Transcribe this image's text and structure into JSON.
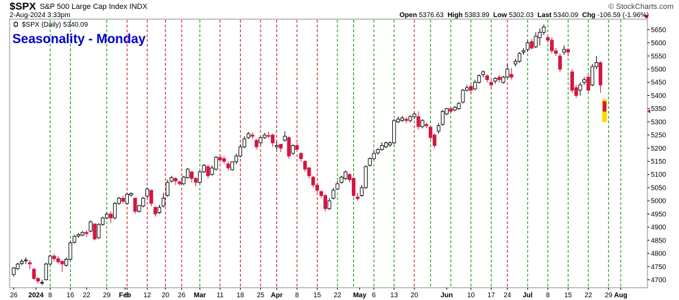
{
  "header": {
    "symbol": "$SPX",
    "description": "S&P 500 Large Cap Index INDX",
    "brand": "© StockCharts.com",
    "date": "2-Aug-2024 3:33pm",
    "open_label": "Open",
    "open": "5376.63",
    "high_label": "High",
    "high": "5383.89",
    "low_label": "Low",
    "low": "5302.03",
    "last_label": "Last",
    "last": "5340.09",
    "chg_label": "Chg",
    "chg": "-106.59 (-1.96%)"
  },
  "colors": {
    "up": "#ffffff",
    "down": "#d4163f",
    "outline": "#000000",
    "green_line": "#008800",
    "red_line": "#cc0000",
    "title": "#0000cc",
    "highlight": "#ffd700",
    "axis_accent": "#cc0000"
  },
  "chart_data": {
    "type": "candlestick",
    "title": "Seasonality - Monday",
    "legend": "$SPX (Daily) 5340.09",
    "ylim": [
      4670,
      5690
    ],
    "yticks": [
      4700,
      4750,
      4800,
      4850,
      4900,
      4950,
      5000,
      5050,
      5100,
      5150,
      5200,
      5250,
      5300,
      5350,
      5400,
      5450,
      5500,
      5550,
      5600,
      5650
    ],
    "x_ticks": [
      {
        "label": "26",
        "x": 0
      },
      {
        "label": "2024",
        "x": 5.5,
        "bold": true
      },
      {
        "label": "8",
        "x": 9
      },
      {
        "label": "16",
        "x": 14
      },
      {
        "label": "22",
        "x": 18
      },
      {
        "label": "29",
        "x": 23
      },
      {
        "label": "Feb",
        "x": 27.5,
        "bold": true
      },
      {
        "label": "5",
        "x": 28
      },
      {
        "label": "12",
        "x": 33
      },
      {
        "label": "20",
        "x": 37.5
      },
      {
        "label": "26",
        "x": 41.5
      },
      {
        "label": "Mar",
        "x": 46,
        "bold": true
      },
      {
        "label": "11",
        "x": 51
      },
      {
        "label": "18",
        "x": 56
      },
      {
        "label": "25",
        "x": 61
      },
      {
        "label": "Apr",
        "x": 65,
        "bold": true
      },
      {
        "label": "8",
        "x": 70
      },
      {
        "label": "15",
        "x": 75
      },
      {
        "label": "22",
        "x": 80
      },
      {
        "label": "May",
        "x": 85.5,
        "bold": true
      },
      {
        "label": "6",
        "x": 89
      },
      {
        "label": "13",
        "x": 94
      },
      {
        "label": "20",
        "x": 99
      },
      {
        "label": "Jun",
        "x": 107,
        "bold": true
      },
      {
        "label": "10",
        "x": 113
      },
      {
        "label": "17",
        "x": 118
      },
      {
        "label": "24",
        "x": 122
      },
      {
        "label": "Jul",
        "x": 127,
        "bold": true
      },
      {
        "label": "8",
        "x": 132
      },
      {
        "label": "15",
        "x": 137
      },
      {
        "label": "22",
        "x": 142
      },
      {
        "label": "29",
        "x": 147
      },
      {
        "label": "Aug",
        "x": 150,
        "bold": true
      }
    ],
    "vlines": [
      {
        "x": 9,
        "color": "green"
      },
      {
        "x": 14,
        "color": "green"
      },
      {
        "x": 23,
        "color": "green"
      },
      {
        "x": 28,
        "color": "red"
      },
      {
        "x": 33,
        "color": "red"
      },
      {
        "x": 37.5,
        "color": "red"
      },
      {
        "x": 41.5,
        "color": "red"
      },
      {
        "x": 46,
        "color": "green"
      },
      {
        "x": 51,
        "color": "red"
      },
      {
        "x": 56,
        "color": "red"
      },
      {
        "x": 61,
        "color": "red"
      },
      {
        "x": 65,
        "color": "red"
      },
      {
        "x": 70,
        "color": "red"
      },
      {
        "x": 75,
        "color": "red"
      },
      {
        "x": 80,
        "color": "green"
      },
      {
        "x": 84,
        "color": "green"
      },
      {
        "x": 89,
        "color": "green"
      },
      {
        "x": 94,
        "color": "green"
      },
      {
        "x": 99,
        "color": "red"
      },
      {
        "x": 103,
        "color": "green"
      },
      {
        "x": 108,
        "color": "green"
      },
      {
        "x": 113,
        "color": "green"
      },
      {
        "x": 118,
        "color": "green"
      },
      {
        "x": 122,
        "color": "red"
      },
      {
        "x": 127,
        "color": "green"
      },
      {
        "x": 132,
        "color": "green"
      },
      {
        "x": 137,
        "color": "green"
      },
      {
        "x": 142,
        "color": "green"
      },
      {
        "x": 147,
        "color": "green"
      },
      {
        "x": 150,
        "color": "green"
      }
    ],
    "candles": [
      [
        4720,
        4745,
        4712,
        4748
      ],
      [
        4742,
        4760,
        4738,
        4765
      ],
      [
        4762,
        4770,
        4755,
        4778
      ],
      [
        4772,
        4775,
        4760,
        4785
      ],
      [
        4765,
        4760,
        4740,
        4775
      ],
      [
        4740,
        4705,
        4700,
        4745
      ],
      [
        4705,
        4695,
        4685,
        4710
      ],
      [
        4690,
        4690,
        4680,
        4700
      ],
      [
        4700,
        4760,
        4698,
        4765
      ],
      [
        4760,
        4790,
        4755,
        4795
      ],
      [
        4790,
        4780,
        4770,
        4798
      ],
      [
        4780,
        4768,
        4760,
        4790
      ],
      [
        4770,
        4760,
        4730,
        4775
      ],
      [
        4755,
        4778,
        4750,
        4785
      ],
      [
        4778,
        4840,
        4775,
        4845
      ],
      [
        4842,
        4865,
        4838,
        4870
      ],
      [
        4866,
        4872,
        4860,
        4878
      ],
      [
        4870,
        4880,
        4865,
        4885
      ],
      [
        4880,
        4875,
        4862,
        4888
      ],
      [
        4885,
        4920,
        4880,
        4925
      ],
      [
        4912,
        4855,
        4850,
        4915
      ],
      [
        4860,
        4910,
        4855,
        4915
      ],
      [
        4910,
        4935,
        4905,
        4940
      ],
      [
        4935,
        4950,
        4930,
        4955
      ],
      [
        4950,
        4935,
        4915,
        4960
      ],
      [
        4935,
        4990,
        4930,
        4995
      ],
      [
        4990,
        5010,
        4985,
        5015
      ],
      [
        5010,
        4998,
        4990,
        5020
      ],
      [
        4990,
        5025,
        4985,
        5030
      ],
      [
        5022,
        5028,
        5015,
        5032
      ],
      [
        5010,
        4960,
        4950,
        5012
      ],
      [
        4960,
        4982,
        4955,
        4985
      ],
      [
        4980,
        5010,
        4975,
        5015
      ],
      [
        5018,
        5045,
        5010,
        5050
      ],
      [
        5040,
        4990,
        4980,
        5042
      ],
      [
        4975,
        4950,
        4940,
        4980
      ],
      [
        4955,
        4975,
        4950,
        4985
      ],
      [
        4980,
        5010,
        4975,
        5030
      ],
      [
        5020,
        5070,
        5015,
        5080
      ],
      [
        5075,
        5088,
        5070,
        5095
      ],
      [
        5085,
        5075,
        5060,
        5090
      ],
      [
        5072,
        5065,
        5058,
        5076
      ],
      [
        5065,
        5090,
        5060,
        5095
      ],
      [
        5088,
        5120,
        5085,
        5125
      ],
      [
        5110,
        5085,
        5070,
        5112
      ],
      [
        5085,
        5070,
        5055,
        5090
      ],
      [
        5070,
        5110,
        5065,
        5115
      ],
      [
        5110,
        5135,
        5105,
        5140
      ],
      [
        5130,
        5095,
        5085,
        5138
      ],
      [
        5100,
        5125,
        5095,
        5135
      ],
      [
        5120,
        5165,
        5115,
        5170
      ],
      [
        5165,
        5155,
        5145,
        5175
      ],
      [
        5160,
        5150,
        5140,
        5170
      ],
      [
        5140,
        5125,
        5115,
        5150
      ],
      [
        5118,
        5148,
        5115,
        5150
      ],
      [
        5148,
        5170,
        5140,
        5178
      ],
      [
        5170,
        5205,
        5165,
        5215
      ],
      [
        5205,
        5235,
        5200,
        5245
      ],
      [
        5240,
        5255,
        5235,
        5262
      ],
      [
        5250,
        5245,
        5235,
        5260
      ],
      [
        5230,
        5205,
        5195,
        5235
      ],
      [
        5220,
        5240,
        5212,
        5245
      ],
      [
        5240,
        5250,
        5235,
        5258
      ],
      [
        5248,
        5245,
        5238,
        5262
      ],
      [
        5250,
        5220,
        5205,
        5255
      ],
      [
        5205,
        5210,
        5195,
        5225
      ],
      [
        5215,
        5200,
        5185,
        5215
      ],
      [
        5230,
        5245,
        5225,
        5264
      ],
      [
        5240,
        5170,
        5160,
        5245
      ],
      [
        5180,
        5210,
        5175,
        5215
      ],
      [
        5210,
        5195,
        5185,
        5220
      ],
      [
        5180,
        5160,
        5148,
        5185
      ],
      [
        5150,
        5120,
        5110,
        5155
      ],
      [
        5125,
        5095,
        5085,
        5128
      ],
      [
        5090,
        5060,
        5050,
        5095
      ],
      [
        5060,
        5040,
        5030,
        5065
      ],
      [
        5035,
        5020,
        5010,
        5040
      ],
      [
        5020,
        4970,
        4960,
        5025
      ],
      [
        4970,
        5000,
        4965,
        5010
      ],
      [
        5010,
        5040,
        5005,
        5050
      ],
      [
        5045,
        5065,
        5040,
        5075
      ],
      [
        5070,
        5090,
        5065,
        5095
      ],
      [
        5085,
        5110,
        5078,
        5115
      ],
      [
        5100,
        5080,
        5070,
        5105
      ],
      [
        5085,
        5020,
        5015,
        5090
      ],
      [
        5015,
        5008,
        5000,
        5030
      ],
      [
        5020,
        5050,
        5015,
        5060
      ],
      [
        5050,
        5130,
        5045,
        5135
      ],
      [
        5135,
        5160,
        5130,
        5165
      ],
      [
        5160,
        5180,
        5155,
        5190
      ],
      [
        5182,
        5195,
        5175,
        5200
      ],
      [
        5195,
        5210,
        5190,
        5222
      ],
      [
        5205,
        5220,
        5200,
        5225
      ],
      [
        5212,
        5220,
        5205,
        5226
      ],
      [
        5220,
        5305,
        5215,
        5310
      ],
      [
        5300,
        5310,
        5295,
        5320
      ],
      [
        5305,
        5315,
        5300,
        5322
      ],
      [
        5310,
        5305,
        5295,
        5318
      ],
      [
        5305,
        5320,
        5298,
        5325
      ],
      [
        5320,
        5330,
        5310,
        5335
      ],
      [
        5320,
        5282,
        5270,
        5340
      ],
      [
        5282,
        5305,
        5275,
        5310
      ],
      [
        5290,
        5285,
        5275,
        5298
      ],
      [
        5280,
        5240,
        5232,
        5283
      ],
      [
        5250,
        5210,
        5200,
        5255
      ],
      [
        5265,
        5285,
        5255,
        5295
      ],
      [
        5290,
        5340,
        5285,
        5345
      ],
      [
        5330,
        5350,
        5325,
        5352
      ],
      [
        5350,
        5340,
        5330,
        5355
      ],
      [
        5345,
        5355,
        5340,
        5360
      ],
      [
        5350,
        5370,
        5345,
        5375
      ],
      [
        5375,
        5420,
        5370,
        5425
      ],
      [
        5420,
        5430,
        5415,
        5440
      ],
      [
        5435,
        5420,
        5405,
        5440
      ],
      [
        5425,
        5450,
        5420,
        5460
      ],
      [
        5450,
        5475,
        5445,
        5480
      ],
      [
        5480,
        5490,
        5470,
        5495
      ],
      [
        5475,
        5460,
        5450,
        5480
      ],
      [
        5450,
        5440,
        5430,
        5460
      ],
      [
        5455,
        5465,
        5445,
        5470
      ],
      [
        5470,
        5460,
        5450,
        5478
      ],
      [
        5450,
        5470,
        5445,
        5475
      ],
      [
        5470,
        5500,
        5465,
        5520
      ],
      [
        5480,
        5470,
        5460,
        5505
      ],
      [
        5520,
        5530,
        5510,
        5540
      ],
      [
        5530,
        5560,
        5525,
        5565
      ],
      [
        5565,
        5570,
        5555,
        5580
      ],
      [
        5575,
        5600,
        5565,
        5610
      ],
      [
        5605,
        5580,
        5575,
        5615
      ],
      [
        5585,
        5625,
        5580,
        5640
      ],
      [
        5620,
        5640,
        5590,
        5655
      ],
      [
        5640,
        5660,
        5630,
        5670
      ],
      [
        5620,
        5610,
        5600,
        5630
      ],
      [
        5610,
        5570,
        5560,
        5620
      ],
      [
        5570,
        5560,
        5550,
        5580
      ],
      [
        5550,
        5500,
        5490,
        5560
      ],
      [
        5565,
        5575,
        5555,
        5590
      ],
      [
        5575,
        5565,
        5550,
        5580
      ],
      [
        5490,
        5420,
        5410,
        5500
      ],
      [
        5430,
        5400,
        5390,
        5440
      ],
      [
        5420,
        5440,
        5400,
        5450
      ],
      [
        5450,
        5460,
        5440,
        5470
      ],
      [
        5470,
        5420,
        5415,
        5480
      ],
      [
        5440,
        5510,
        5435,
        5520
      ],
      [
        5510,
        5525,
        5500,
        5550
      ],
      [
        5525,
        5440,
        5410,
        5530
      ],
      [
        5376.63,
        5340.09,
        5302.03,
        5383.89
      ]
    ]
  }
}
